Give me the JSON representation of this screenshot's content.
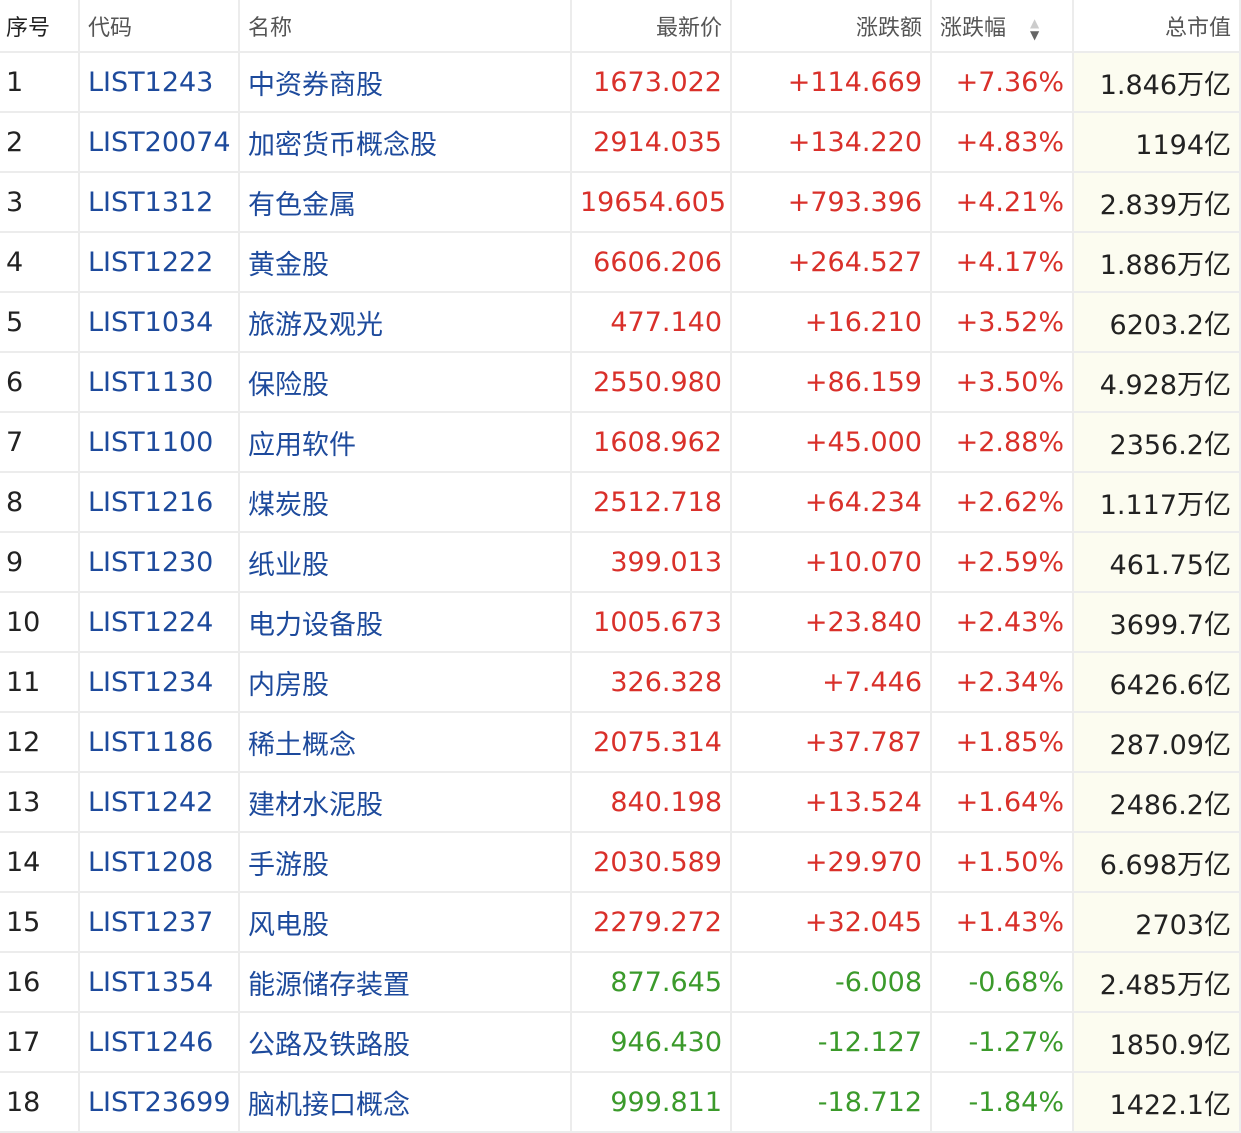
{
  "colors": {
    "up": "#d9302a",
    "down": "#3b9a2b",
    "link": "#1d4a9c",
    "cap_bg": "#fcfcf0"
  },
  "headers": {
    "seq": "序号",
    "code": "代码",
    "name": "名称",
    "price": "最新价",
    "change": "涨跌额",
    "pct": "涨跌幅",
    "cap": "总市值"
  },
  "sort_icon": "sort-up-down-icon",
  "rows": [
    {
      "seq": "1",
      "code": "LIST1243",
      "name": "中资券商股",
      "price": "1673.022",
      "change": "+114.669",
      "pct": "+7.36%",
      "cap": "1.846万亿",
      "dir": "up"
    },
    {
      "seq": "2",
      "code": "LIST20074",
      "name": "加密货币概念股",
      "price": "2914.035",
      "change": "+134.220",
      "pct": "+4.83%",
      "cap": "1194亿",
      "dir": "up"
    },
    {
      "seq": "3",
      "code": "LIST1312",
      "name": "有色金属",
      "price": "19654.605",
      "change": "+793.396",
      "pct": "+4.21%",
      "cap": "2.839万亿",
      "dir": "up"
    },
    {
      "seq": "4",
      "code": "LIST1222",
      "name": "黄金股",
      "price": "6606.206",
      "change": "+264.527",
      "pct": "+4.17%",
      "cap": "1.886万亿",
      "dir": "up"
    },
    {
      "seq": "5",
      "code": "LIST1034",
      "name": "旅游及观光",
      "price": "477.140",
      "change": "+16.210",
      "pct": "+3.52%",
      "cap": "6203.2亿",
      "dir": "up"
    },
    {
      "seq": "6",
      "code": "LIST1130",
      "name": "保险股",
      "price": "2550.980",
      "change": "+86.159",
      "pct": "+3.50%",
      "cap": "4.928万亿",
      "dir": "up"
    },
    {
      "seq": "7",
      "code": "LIST1100",
      "name": "应用软件",
      "price": "1608.962",
      "change": "+45.000",
      "pct": "+2.88%",
      "cap": "2356.2亿",
      "dir": "up"
    },
    {
      "seq": "8",
      "code": "LIST1216",
      "name": "煤炭股",
      "price": "2512.718",
      "change": "+64.234",
      "pct": "+2.62%",
      "cap": "1.117万亿",
      "dir": "up"
    },
    {
      "seq": "9",
      "code": "LIST1230",
      "name": "纸业股",
      "price": "399.013",
      "change": "+10.070",
      "pct": "+2.59%",
      "cap": "461.75亿",
      "dir": "up"
    },
    {
      "seq": "10",
      "code": "LIST1224",
      "name": "电力设备股",
      "price": "1005.673",
      "change": "+23.840",
      "pct": "+2.43%",
      "cap": "3699.7亿",
      "dir": "up"
    },
    {
      "seq": "11",
      "code": "LIST1234",
      "name": "内房股",
      "price": "326.328",
      "change": "+7.446",
      "pct": "+2.34%",
      "cap": "6426.6亿",
      "dir": "up"
    },
    {
      "seq": "12",
      "code": "LIST1186",
      "name": "稀土概念",
      "price": "2075.314",
      "change": "+37.787",
      "pct": "+1.85%",
      "cap": "287.09亿",
      "dir": "up"
    },
    {
      "seq": "13",
      "code": "LIST1242",
      "name": "建材水泥股",
      "price": "840.198",
      "change": "+13.524",
      "pct": "+1.64%",
      "cap": "2486.2亿",
      "dir": "up"
    },
    {
      "seq": "14",
      "code": "LIST1208",
      "name": "手游股",
      "price": "2030.589",
      "change": "+29.970",
      "pct": "+1.50%",
      "cap": "6.698万亿",
      "dir": "up"
    },
    {
      "seq": "15",
      "code": "LIST1237",
      "name": "风电股",
      "price": "2279.272",
      "change": "+32.045",
      "pct": "+1.43%",
      "cap": "2703亿",
      "dir": "up"
    },
    {
      "seq": "16",
      "code": "LIST1354",
      "name": "能源储存装置",
      "price": "877.645",
      "change": "-6.008",
      "pct": "-0.68%",
      "cap": "2.485万亿",
      "dir": "down"
    },
    {
      "seq": "17",
      "code": "LIST1246",
      "name": "公路及铁路股",
      "price": "946.430",
      "change": "-12.127",
      "pct": "-1.27%",
      "cap": "1850.9亿",
      "dir": "down"
    },
    {
      "seq": "18",
      "code": "LIST23699",
      "name": "脑机接口概念",
      "price": "999.811",
      "change": "-18.712",
      "pct": "-1.84%",
      "cap": "1422.1亿",
      "dir": "down"
    }
  ]
}
